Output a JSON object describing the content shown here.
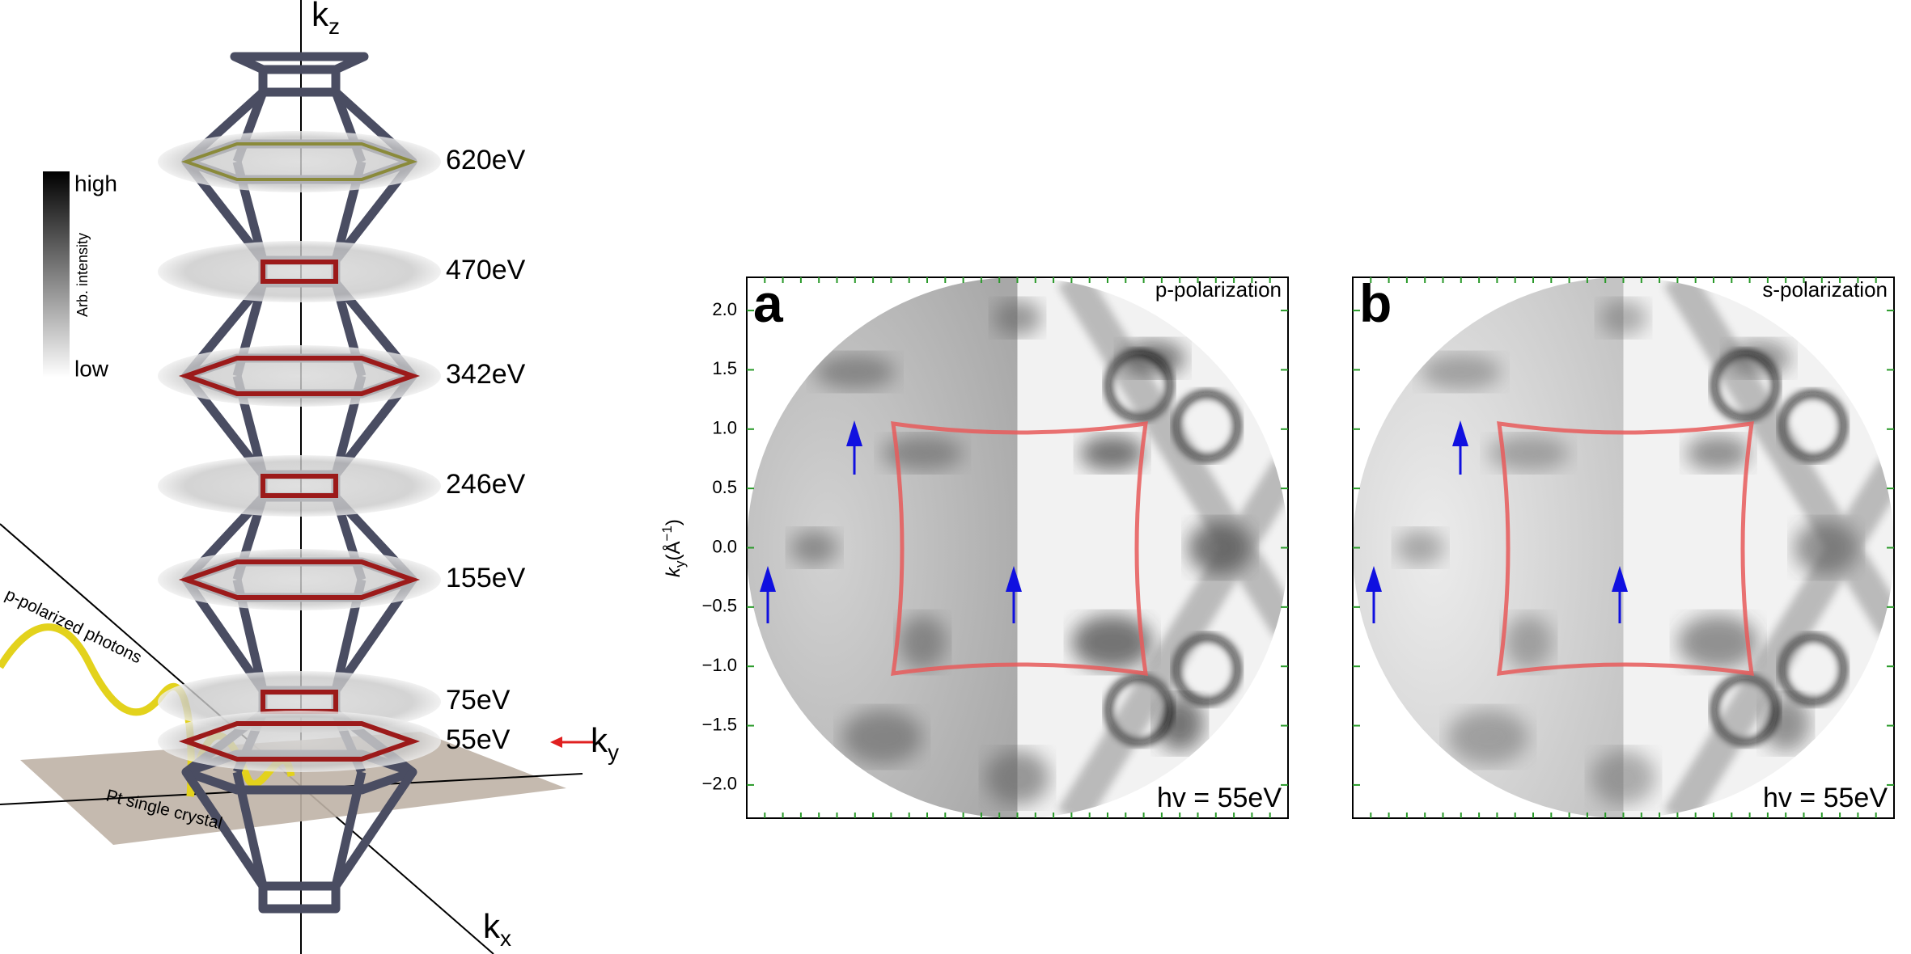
{
  "figure": {
    "kz_axis": {
      "main": "k",
      "sub": "z"
    },
    "ky_axis": {
      "main": "k",
      "sub": "y"
    },
    "kx_axis": {
      "main": "k",
      "sub": "x"
    },
    "energies": [
      "620eV",
      "470eV",
      "342eV",
      "246eV",
      "155eV",
      "75eV",
      "55eV"
    ],
    "colorbar": {
      "high": "high",
      "title": "Arb. intensity",
      "low": "low"
    },
    "photon_label": "p-polarized  photons",
    "crystal_label": "Pt single crystal"
  },
  "maps": {
    "ylabel": {
      "main": "k",
      "sub": "y",
      "unit": "(Å",
      "sup": "−1",
      "close": ")"
    },
    "ylim": [
      -2.28,
      2.28
    ],
    "yticks": [
      {
        "value": 2,
        "label": "2.0"
      },
      {
        "value": 1.5,
        "label": "1.5"
      },
      {
        "value": 1,
        "label": "1.0"
      },
      {
        "value": 0.5,
        "label": "0.5"
      },
      {
        "value": 0,
        "label": "0.0"
      },
      {
        "value": -0.5,
        "label": "−0.5"
      },
      {
        "value": -1,
        "label": "−1.0"
      },
      {
        "value": -1.5,
        "label": "−1.5"
      },
      {
        "value": -2,
        "label": "−2.0"
      }
    ],
    "panels": [
      {
        "letter": "a",
        "polarization": "p-polarization",
        "photon_energy": "hv = 55eV"
      },
      {
        "letter": "b",
        "polarization": "s-polarization",
        "photon_energy": "hv = 55eV"
      }
    ]
  }
}
